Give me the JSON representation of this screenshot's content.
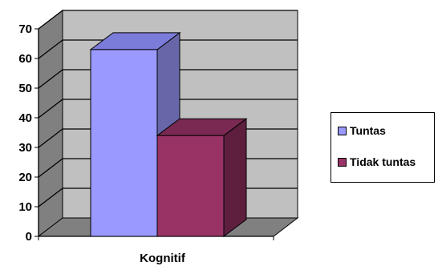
{
  "chart_data": {
    "type": "bar",
    "categories": [
      "Kognitif"
    ],
    "series": [
      {
        "name": "Tuntas",
        "values": [
          63
        ],
        "color": "#9999ff",
        "side_color": "#6666a8",
        "top_color": "#7b7bd9"
      },
      {
        "name": "Tidak tuntas",
        "values": [
          34
        ],
        "color": "#993366",
        "side_color": "#5e1f3f",
        "top_color": "#7a2a52"
      }
    ],
    "y_ticks": [
      "0",
      "10",
      "20",
      "30",
      "40",
      "50",
      "60",
      "70"
    ],
    "ylim": [
      0,
      70
    ],
    "grid": true,
    "legend_position": "right",
    "style": "3d-column",
    "wall_color": "#c0c0c0",
    "floor_color": "#808080"
  }
}
